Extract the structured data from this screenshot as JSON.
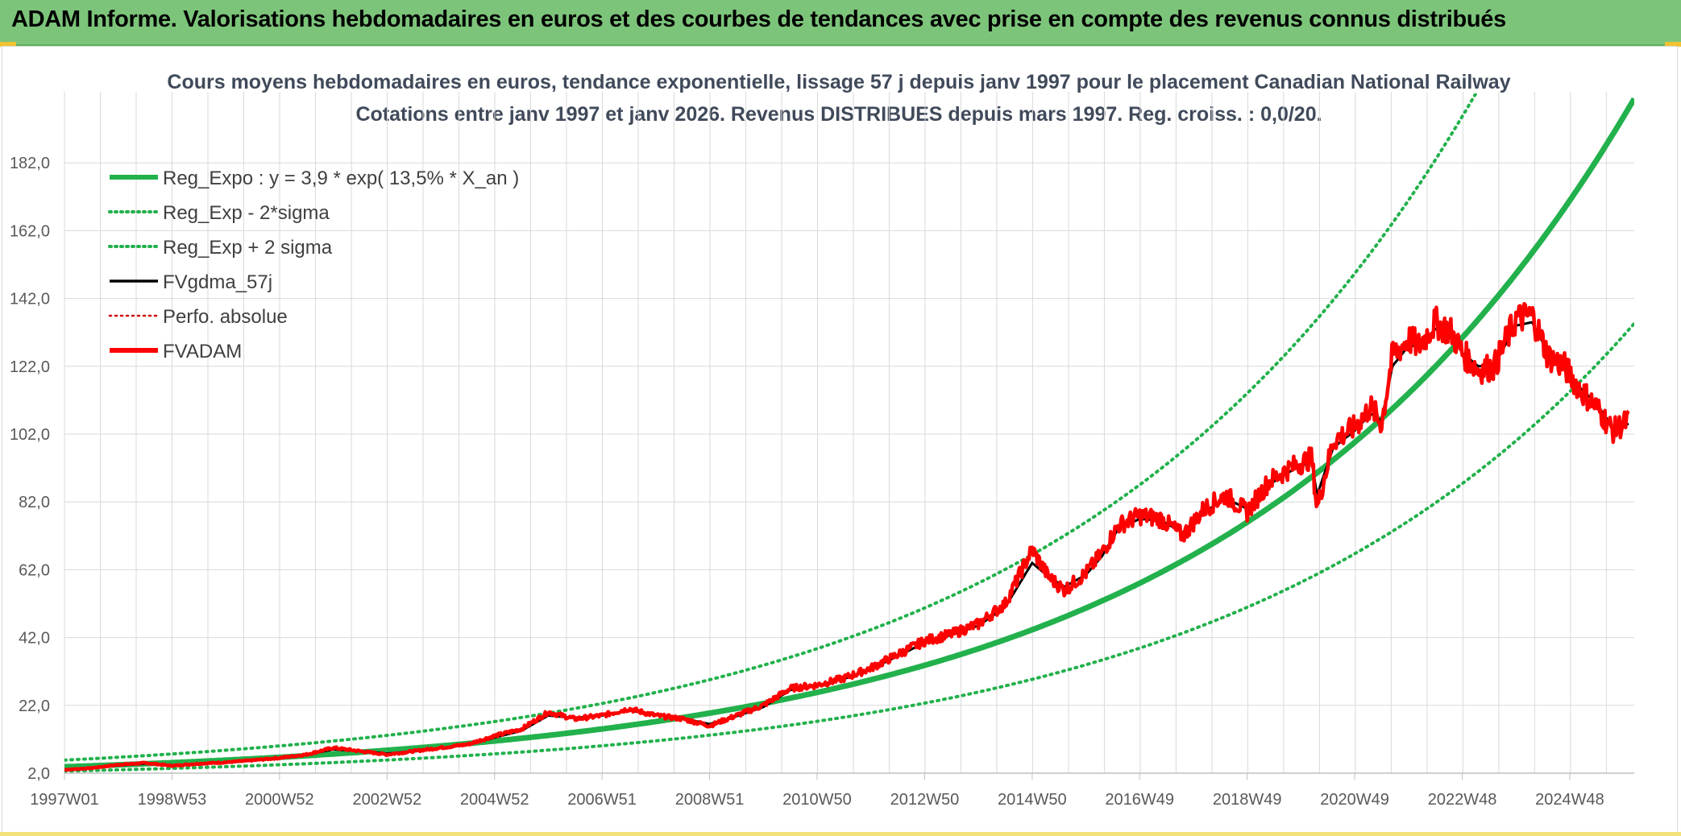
{
  "banner": {
    "title": "ADAM Informe. Valorisations hebdomadaires en euros et des courbes de tendances avec prise en compte des revenus connus distribués"
  },
  "colors": {
    "banner_bg": "#7cc47a",
    "trend_green": "#22b14c",
    "fv_adam_red": "#ff0000",
    "ma_black": "#000000",
    "perfo_red": "#d00000",
    "grid": "#d9d9d9"
  },
  "chart_data": {
    "type": "line",
    "title_lines": [
      "Cours moyens hebdomadaires en euros, tendance exponentielle, lissage 57 j depuis janv 1997 pour le placement Canadian National Railway",
      "Cotations entre janv 1997 et janv 2026. Revenus DISTRIBUES depuis mars 1997. Reg. croiss. : 0,0/20."
    ],
    "xlabel": "",
    "ylabel": "",
    "x_tick_labels": [
      "1997W01",
      "1998W53",
      "2000W52",
      "2002W52",
      "2004W52",
      "2006W51",
      "2008W51",
      "2010W50",
      "2012W50",
      "2014W50",
      "2016W49",
      "2018W49",
      "2020W49",
      "2022W48",
      "2024W48"
    ],
    "x_tick_years": [
      1997,
      1999,
      2001,
      2003,
      2005,
      2007,
      2009,
      2011,
      2013,
      2015,
      2017,
      2019,
      2021,
      2023,
      2025
    ],
    "x_range": [
      1997.0,
      2026.2
    ],
    "y_tick_labels": [
      "2,0",
      "22,0",
      "42,0",
      "62,0",
      "82,0",
      "102,0",
      "122,0",
      "142,0",
      "162,0",
      "182,0"
    ],
    "y_ticks": [
      2,
      22,
      42,
      62,
      82,
      102,
      122,
      142,
      162,
      182
    ],
    "ylim": [
      2,
      202
    ],
    "grid": true,
    "legend_position": "top-left",
    "legend": [
      {
        "label": "Reg_Expo : y = 3,9 * exp( 13,5% *  X_an )",
        "color": "#22b14c",
        "style": "solid-thick"
      },
      {
        "label": "Reg_Exp - 2*sigma",
        "color": "#22b14c",
        "style": "dotted"
      },
      {
        "label": "Reg_Exp + 2 sigma",
        "color": "#22b14c",
        "style": "dotted"
      },
      {
        "label": "FVgdma_57j",
        "color": "#000000",
        "style": "solid"
      },
      {
        "label": "Perfo. absolue",
        "color": "#d00000",
        "style": "dotted"
      },
      {
        "label": "FVADAM",
        "color": "#ff0000",
        "style": "solid-thick"
      }
    ],
    "regression": {
      "a": 3.9,
      "rate": 0.135,
      "lower_factor": 0.67,
      "upper_factor": 1.5
    },
    "series": [
      {
        "name": "FVADAM",
        "x": [
          1997.0,
          1997.5,
          1998.0,
          1998.5,
          1999.0,
          1999.5,
          2000.0,
          2000.5,
          2001.0,
          2001.5,
          2002.0,
          2002.5,
          2003.0,
          2003.5,
          2004.0,
          2004.5,
          2005.0,
          2005.5,
          2006.0,
          2006.5,
          2007.0,
          2007.5,
          2008.0,
          2008.5,
          2009.0,
          2009.5,
          2010.0,
          2010.5,
          2011.0,
          2011.5,
          2012.0,
          2012.5,
          2013.0,
          2013.5,
          2014.0,
          2014.5,
          2015.0,
          2015.3,
          2015.6,
          2016.0,
          2016.3,
          2016.6,
          2017.0,
          2017.4,
          2017.8,
          2018.2,
          2018.6,
          2019.0,
          2019.4,
          2019.8,
          2020.2,
          2020.3,
          2020.6,
          2021.0,
          2021.3,
          2021.5,
          2021.7,
          2022.0,
          2022.2,
          2022.5,
          2022.8,
          2023.0,
          2023.3,
          2023.6,
          2024.0,
          2024.3,
          2024.6,
          2024.9,
          2025.2,
          2025.5,
          2025.8,
          2026.1
        ],
        "y": [
          3.0,
          3.5,
          4.5,
          5.0,
          4.2,
          4.8,
          5.2,
          5.8,
          6.5,
          7.5,
          9.5,
          8.5,
          7.5,
          8.5,
          9.5,
          10.5,
          13.0,
          15.0,
          20.0,
          18.0,
          19.0,
          21.0,
          19.0,
          18.0,
          16.0,
          19.0,
          22.0,
          27.0,
          28.0,
          30.0,
          33.0,
          37.0,
          41.0,
          43.0,
          46.0,
          52.0,
          68.0,
          60.0,
          56.0,
          61.0,
          67.0,
          75.0,
          78.0,
          77.0,
          72.0,
          80.0,
          84.0,
          79.0,
          88.0,
          92.0,
          95.0,
          80.0,
          100.0,
          104.0,
          110.0,
          105.0,
          125.0,
          130.0,
          128.0,
          135.0,
          132.0,
          126.0,
          121.0,
          122.0,
          136.0,
          137.0,
          125.0,
          122.0,
          115.0,
          110.0,
          103.0,
          106.0
        ]
      },
      {
        "name": "FVgdma_57j",
        "x": [
          1997.0,
          1997.5,
          1998.0,
          1998.5,
          1999.0,
          1999.5,
          2000.0,
          2000.5,
          2001.0,
          2001.5,
          2002.0,
          2002.5,
          2003.0,
          2003.5,
          2004.0,
          2004.5,
          2005.0,
          2005.5,
          2006.0,
          2006.5,
          2007.0,
          2007.5,
          2008.0,
          2008.5,
          2009.0,
          2009.5,
          2010.0,
          2010.5,
          2011.0,
          2011.5,
          2012.0,
          2012.5,
          2013.0,
          2013.5,
          2014.0,
          2014.5,
          2015.0,
          2015.3,
          2015.6,
          2016.0,
          2016.3,
          2016.6,
          2017.0,
          2017.4,
          2017.8,
          2018.2,
          2018.6,
          2019.0,
          2019.4,
          2019.8,
          2020.2,
          2020.3,
          2020.6,
          2021.0,
          2021.3,
          2021.5,
          2021.7,
          2022.0,
          2022.2,
          2022.5,
          2022.8,
          2023.0,
          2023.3,
          2023.6,
          2024.0,
          2024.3,
          2024.6,
          2024.9,
          2025.2,
          2025.5,
          2025.8,
          2026.1
        ],
        "y": [
          3.0,
          3.4,
          4.3,
          4.8,
          4.3,
          4.7,
          5.1,
          5.7,
          6.4,
          7.4,
          9.0,
          8.5,
          7.8,
          8.4,
          9.4,
          10.4,
          12.5,
          14.5,
          19.0,
          18.3,
          19.0,
          20.5,
          19.2,
          18.2,
          16.5,
          18.8,
          21.5,
          26.5,
          27.8,
          29.8,
          32.7,
          36.5,
          40.5,
          42.8,
          45.5,
          51.0,
          64.0,
          60.0,
          57.0,
          60.5,
          66.0,
          74.0,
          77.0,
          76.5,
          73.0,
          79.0,
          83.0,
          80.0,
          87.0,
          91.0,
          94.0,
          84.0,
          98.0,
          103.0,
          108.0,
          106.0,
          122.0,
          128.0,
          128.0,
          133.0,
          131.0,
          126.0,
          122.0,
          122.5,
          134.0,
          135.0,
          126.0,
          122.0,
          115.5,
          111.0,
          104.0,
          105.0
        ]
      }
    ]
  }
}
